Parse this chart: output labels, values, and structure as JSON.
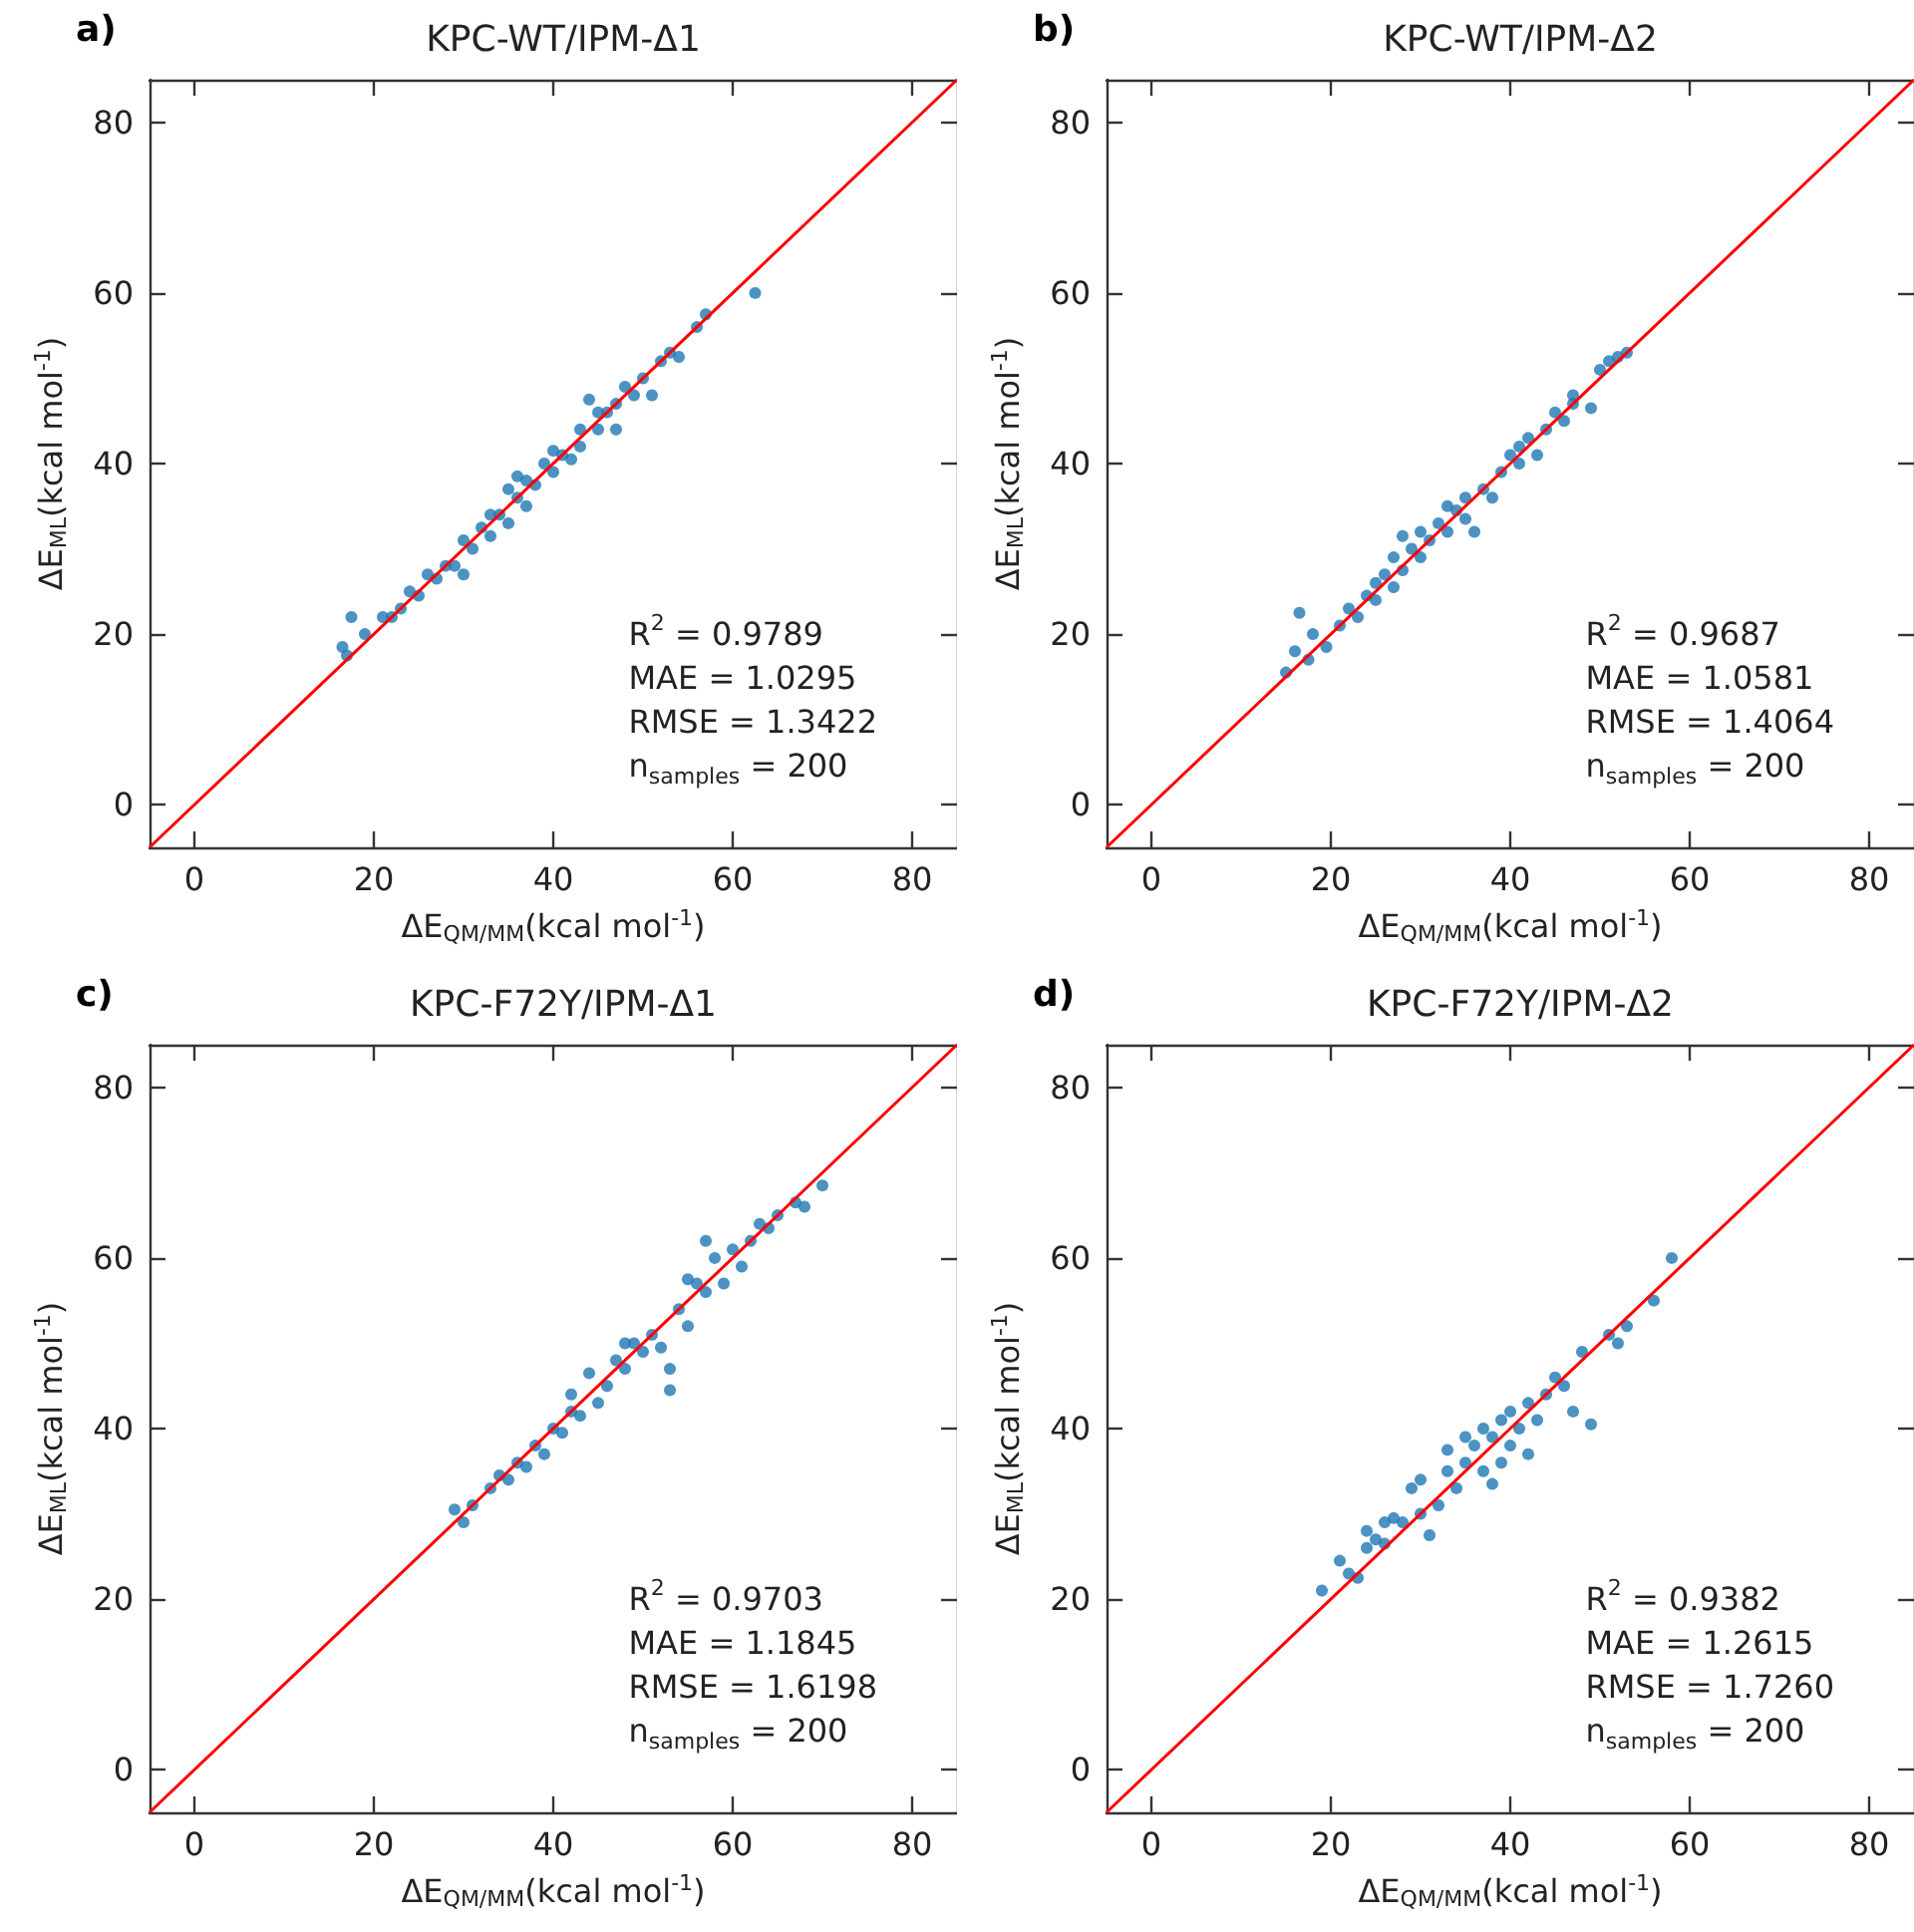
{
  "chart_data": [
    {
      "type": "scatter",
      "title": "KPC-WT/IPM-Δ1",
      "xlabel": "ΔE$_{QM/MM}$(kcal mol$^{-1}$)",
      "ylabel": "ΔE$_{ML}$(kcal mol$^{-1}$)",
      "annotations": [
        "a)",
        "R$^{2}$ = 0.9789",
        "MAE = 1.0295",
        "RMSE = 1.3422",
        "n$_{samples}$ = 200"
      ],
      "xlim": [
        -5,
        85
      ],
      "ylim": [
        -5,
        85
      ],
      "xticks": [
        0,
        20,
        40,
        60,
        80
      ],
      "yticks": [
        0,
        20,
        40,
        60,
        80
      ],
      "series": [
        {
          "marker": "circle",
          "color": "#1f77b4",
          "x": [
            16.5,
            17,
            17.5,
            19,
            21,
            22,
            23,
            24,
            25,
            26,
            27,
            28,
            29,
            30,
            30,
            31,
            32,
            33,
            34,
            35,
            35,
            36,
            37,
            37,
            38,
            39,
            40,
            41,
            42,
            43,
            43,
            44,
            45,
            46,
            47,
            48,
            49,
            50,
            51,
            52,
            53,
            54,
            56,
            57,
            62.5,
            47,
            40,
            33,
            36,
            45
          ],
          "values": [
            18.5,
            17.5,
            22,
            20,
            22,
            22,
            23,
            25,
            24.5,
            27,
            26.5,
            28,
            28,
            27,
            31,
            30,
            32.5,
            31.5,
            34,
            33,
            37,
            36,
            35,
            38,
            37.5,
            40,
            39,
            41,
            40.5,
            42,
            44,
            47.5,
            44,
            46,
            44,
            49,
            48,
            50,
            48,
            52,
            53,
            52.5,
            56,
            57.5,
            60,
            47,
            41.5,
            34,
            38.5,
            46
          ]
        },
        {
          "type": "line",
          "color": "#ff0000",
          "x": [
            -5,
            85
          ],
          "values": [
            -5,
            85
          ]
        }
      ]
    },
    {
      "type": "scatter",
      "title": "KPC-WT/IPM-Δ2",
      "xlabel": "ΔE$_{QM/MM}$(kcal mol$^{-1}$)",
      "ylabel": "ΔE$_{ML}$(kcal mol$^{-1}$)",
      "annotations": [
        "b)",
        "R$^{2}$ = 0.9687",
        "MAE = 1.0581",
        "RMSE = 1.4064",
        "n$_{samples}$ = 200"
      ],
      "xlim": [
        -5,
        85
      ],
      "ylim": [
        -5,
        85
      ],
      "xticks": [
        0,
        20,
        40,
        60,
        80
      ],
      "yticks": [
        0,
        20,
        40,
        60,
        80
      ],
      "series": [
        {
          "marker": "circle",
          "color": "#1f77b4",
          "x": [
            15,
            16,
            16.5,
            17.5,
            18,
            19.5,
            21,
            22,
            23,
            24,
            25,
            25,
            26,
            27,
            27,
            28,
            29,
            30,
            30,
            31,
            32,
            33,
            33,
            34,
            35,
            35,
            36,
            37,
            38,
            39,
            40,
            41,
            41,
            42,
            43,
            44,
            45,
            46,
            47,
            47,
            49,
            50,
            51,
            52,
            53,
            28
          ],
          "values": [
            15.5,
            18,
            22.5,
            17,
            20,
            18.5,
            21,
            23,
            22,
            24.5,
            26,
            24,
            27,
            25.5,
            29,
            27.5,
            30,
            29,
            32,
            31,
            33,
            32,
            35,
            34.5,
            36,
            33.5,
            32,
            37,
            36,
            39,
            41,
            40,
            42,
            43,
            41,
            44,
            46,
            45,
            48,
            47,
            46.5,
            51,
            52,
            52.5,
            53,
            31.5
          ]
        },
        {
          "type": "line",
          "color": "#ff0000",
          "x": [
            -5,
            85
          ],
          "values": [
            -5,
            85
          ]
        }
      ]
    },
    {
      "type": "scatter",
      "title": "KPC-F72Y/IPM-Δ1",
      "xlabel": "ΔE$_{QM/MM}$(kcal mol$^{-1}$)",
      "ylabel": "ΔE$_{ML}$(kcal mol$^{-1}$)",
      "annotations": [
        "c)",
        "R$^{2}$ = 0.9703",
        "MAE = 1.1845",
        "RMSE = 1.6198",
        "n$_{samples}$ = 200"
      ],
      "xlim": [
        -5,
        85
      ],
      "ylim": [
        -5,
        85
      ],
      "xticks": [
        0,
        20,
        40,
        60,
        80
      ],
      "yticks": [
        0,
        20,
        40,
        60,
        80
      ],
      "series": [
        {
          "marker": "circle",
          "color": "#1f77b4",
          "x": [
            29,
            30,
            31,
            33,
            34,
            35,
            36,
            37,
            38,
            39,
            40,
            41,
            42,
            42,
            43,
            44,
            45,
            46,
            47,
            48,
            49,
            50,
            51,
            52,
            53,
            53,
            54,
            55,
            56,
            57,
            57,
            58,
            59,
            60,
            61,
            62,
            63,
            64,
            65,
            67,
            68,
            70,
            55,
            48
          ],
          "values": [
            30.5,
            29,
            31,
            33,
            34.5,
            34,
            36,
            35.5,
            38,
            37,
            40,
            39.5,
            42,
            44,
            41.5,
            46.5,
            43,
            45,
            48,
            47,
            50,
            49,
            51,
            49.5,
            44.5,
            47,
            54,
            52,
            57,
            56,
            62,
            60,
            57,
            61,
            59,
            62,
            64,
            63.5,
            65,
            66.5,
            66,
            68.5,
            57.5,
            50
          ]
        },
        {
          "type": "line",
          "color": "#ff0000",
          "x": [
            -5,
            85
          ],
          "values": [
            -5,
            85
          ]
        }
      ]
    },
    {
      "type": "scatter",
      "title": "KPC-F72Y/IPM-Δ2",
      "xlabel": "ΔE$_{QM/MM}$(kcal mol$^{-1}$)",
      "ylabel": "ΔE$_{ML}$(kcal mol$^{-1}$)",
      "annotations": [
        "d)",
        "R$^{2}$ = 0.9382",
        "MAE = 1.2615",
        "RMSE = 1.7260",
        "n$_{samples}$ = 200"
      ],
      "xlim": [
        -5,
        85
      ],
      "ylim": [
        -5,
        85
      ],
      "xticks": [
        0,
        20,
        40,
        60,
        80
      ],
      "yticks": [
        0,
        20,
        40,
        60,
        80
      ],
      "series": [
        {
          "marker": "circle",
          "color": "#1f77b4",
          "x": [
            19,
            21,
            22,
            23,
            24,
            24,
            25,
            26,
            26,
            27,
            28,
            29,
            30,
            30,
            31,
            32,
            33,
            33,
            34,
            35,
            36,
            37,
            37,
            38,
            38,
            39,
            40,
            40,
            41,
            42,
            42,
            43,
            44,
            45,
            46,
            47,
            48,
            49,
            51,
            52,
            53,
            56,
            58,
            35,
            39
          ],
          "values": [
            21,
            24.5,
            23,
            22.5,
            26,
            28,
            27,
            29,
            26.5,
            29.5,
            29,
            33,
            30,
            34,
            27.5,
            31,
            35,
            37.5,
            33,
            36,
            38,
            35,
            40,
            33.5,
            39,
            41,
            38,
            42,
            40,
            43,
            37,
            41,
            44,
            46,
            45,
            42,
            49,
            40.5,
            51,
            50,
            52,
            55,
            60,
            39,
            36
          ]
        },
        {
          "type": "line",
          "color": "#ff0000",
          "x": [
            -5,
            85
          ],
          "values": [
            -5,
            85
          ]
        }
      ]
    }
  ]
}
